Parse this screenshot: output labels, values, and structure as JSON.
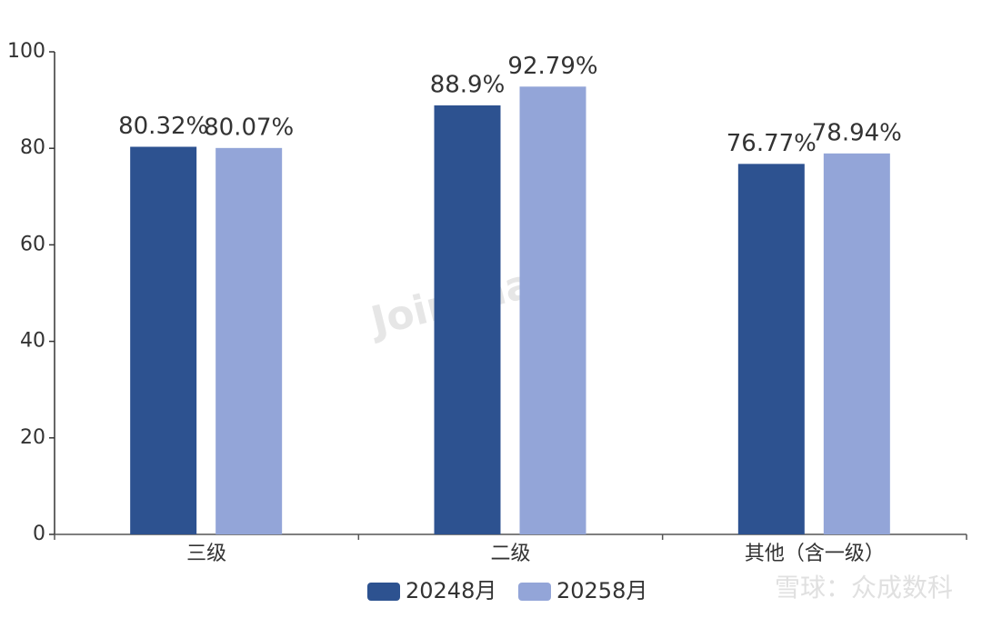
{
  "chart_data": {
    "type": "bar",
    "categories": [
      "三级",
      "二级",
      "其他（含一级）"
    ],
    "series": [
      {
        "name": "20248月",
        "color": "#2d5290",
        "values": [
          80.32,
          88.9,
          76.77
        ],
        "value_labels": [
          "80.32%",
          "88.9%",
          "76.77%"
        ]
      },
      {
        "name": "20258月",
        "color": "#93a5d8",
        "values": [
          80.07,
          92.79,
          78.94
        ],
        "value_labels": [
          "80.07%",
          "92.79%",
          "78.94%"
        ]
      }
    ],
    "ylim": [
      0,
      100
    ],
    "yticks": [
      0,
      20,
      40,
      60,
      80,
      100
    ],
    "grid": false,
    "legend": "bottom"
  },
  "watermarks": [
    "Joinchain",
    "雪球：众成数科"
  ]
}
